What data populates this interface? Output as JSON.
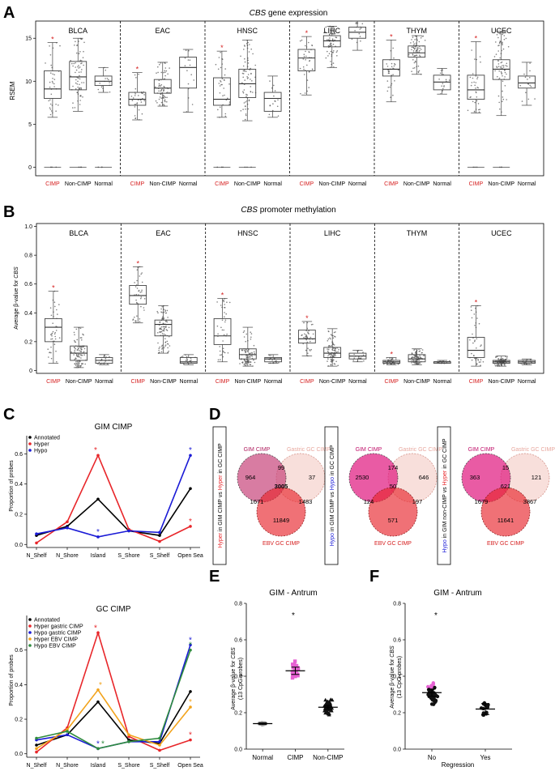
{
  "panelA": {
    "label": "A",
    "title_gene": "CBS",
    "title_rest": " gene expression",
    "ylabel": "RSEM",
    "ylim": [
      -1,
      17
    ],
    "yticks": [
      0,
      5,
      10,
      15
    ],
    "groups": [
      "CIMP",
      "Non-CIMP",
      "Normal"
    ],
    "cancers": [
      "BLCA",
      "EAC",
      "HNSC",
      "LIHC",
      "THYM",
      "UCEC"
    ],
    "colors": {
      "cimp": "#d62020",
      "box": "#444444",
      "star": "#d62020"
    }
  },
  "panelB": {
    "label": "B",
    "title_gene": "CBS",
    "title_rest": " promoter methylation",
    "ylabel_prefix": "Average β-value for ",
    "ylabel_gene": "CBS",
    "ylim": [
      -0.02,
      1.02
    ],
    "yticks": [
      "0",
      "0.2",
      "0.4",
      "0.6",
      "0.8",
      "1.0"
    ],
    "groups": [
      "CIMP",
      "Non-CIMP",
      "Normal"
    ],
    "cancers": [
      "BLCA",
      "EAC",
      "HNSC",
      "LIHC",
      "THYM",
      "UCEC"
    ]
  },
  "chart_data": [
    {
      "type": "box",
      "title": "CBS gene expression",
      "ylabel": "RSEM",
      "ylim": [
        -1,
        17
      ],
      "series": [
        {
          "cancer": "BLCA",
          "group": "CIMP",
          "q1": 8.0,
          "median": 9.1,
          "q3": 11.2,
          "wlow": 5.8,
          "whigh": 14.5
        },
        {
          "cancer": "BLCA",
          "group": "Non-CIMP",
          "q1": 9.0,
          "median": 10.5,
          "q3": 12.3,
          "wlow": 6.5,
          "whigh": 15.0
        },
        {
          "cancer": "BLCA",
          "group": "Normal",
          "q1": 9.5,
          "median": 10.0,
          "q3": 10.6,
          "wlow": 8.7,
          "whigh": 11.6
        },
        {
          "cancer": "EAC",
          "group": "CIMP",
          "q1": 7.2,
          "median": 7.9,
          "q3": 8.7,
          "wlow": 5.5,
          "whigh": 11.0
        },
        {
          "cancer": "EAC",
          "group": "Non-CIMP",
          "q1": 8.6,
          "median": 9.2,
          "q3": 10.2,
          "wlow": 7.1,
          "whigh": 12.2
        },
        {
          "cancer": "EAC",
          "group": "Normal",
          "q1": 9.2,
          "median": 11.6,
          "q3": 12.8,
          "wlow": 6.4,
          "whigh": 13.7
        },
        {
          "cancer": "HNSC",
          "group": "CIMP",
          "q1": 7.2,
          "median": 7.9,
          "q3": 10.4,
          "wlow": 5.8,
          "whigh": 13.5
        },
        {
          "cancer": "HNSC",
          "group": "Non-CIMP",
          "q1": 8.1,
          "median": 9.7,
          "q3": 11.4,
          "wlow": 5.4,
          "whigh": 14.8
        },
        {
          "cancer": "HNSC",
          "group": "Normal",
          "q1": 6.5,
          "median": 8.0,
          "q3": 8.7,
          "wlow": 5.8,
          "whigh": 10.6
        },
        {
          "cancer": "LIHC",
          "group": "CIMP",
          "q1": 11.2,
          "median": 12.7,
          "q3": 13.7,
          "wlow": 8.4,
          "whigh": 15.2
        },
        {
          "cancer": "LIHC",
          "group": "Non-CIMP",
          "q1": 14.0,
          "median": 14.7,
          "q3": 15.3,
          "wlow": 11.6,
          "whigh": 16.4
        },
        {
          "cancer": "LIHC",
          "group": "Normal",
          "q1": 15.0,
          "median": 15.7,
          "q3": 16.3,
          "wlow": 13.6,
          "whigh": 17.0
        },
        {
          "cancer": "THYM",
          "group": "CIMP",
          "q1": 10.6,
          "median": 11.4,
          "q3": 12.5,
          "wlow": 7.6,
          "whigh": 14.8
        },
        {
          "cancer": "THYM",
          "group": "Non-CIMP",
          "q1": 12.8,
          "median": 13.3,
          "q3": 14.1,
          "wlow": 10.8,
          "whigh": 15.3
        },
        {
          "cancer": "THYM",
          "group": "Normal",
          "q1": 9.0,
          "median": 9.9,
          "q3": 10.7,
          "wlow": 8.5,
          "whigh": 11.5
        },
        {
          "cancer": "UCEC",
          "group": "CIMP",
          "q1": 7.9,
          "median": 9.0,
          "q3": 10.7,
          "wlow": 6.3,
          "whigh": 14.6
        },
        {
          "cancer": "UCEC",
          "group": "Non-CIMP",
          "q1": 10.2,
          "median": 11.4,
          "q3": 12.5,
          "wlow": 6.0,
          "whigh": 15.8
        },
        {
          "cancer": "UCEC",
          "group": "Normal",
          "q1": 9.2,
          "median": 9.8,
          "q3": 10.6,
          "wlow": 7.2,
          "whigh": 12.2
        }
      ]
    },
    {
      "type": "box",
      "title": "CBS promoter methylation",
      "ylabel": "Average β-value for CBS",
      "ylim": [
        -0.02,
        1.02
      ],
      "series": [
        {
          "cancer": "BLCA",
          "group": "CIMP",
          "q1": 0.2,
          "median": 0.3,
          "q3": 0.36,
          "wlow": 0.05,
          "whigh": 0.55
        },
        {
          "cancer": "BLCA",
          "group": "Non-CIMP",
          "q1": 0.07,
          "median": 0.12,
          "q3": 0.17,
          "wlow": 0.02,
          "whigh": 0.3
        },
        {
          "cancer": "BLCA",
          "group": "Normal",
          "q1": 0.05,
          "median": 0.07,
          "q3": 0.09,
          "wlow": 0.04,
          "whigh": 0.11
        },
        {
          "cancer": "EAC",
          "group": "CIMP",
          "q1": 0.46,
          "median": 0.52,
          "q3": 0.59,
          "wlow": 0.33,
          "whigh": 0.72
        },
        {
          "cancer": "EAC",
          "group": "Non-CIMP",
          "q1": 0.24,
          "median": 0.32,
          "q3": 0.35,
          "wlow": 0.12,
          "whigh": 0.45
        },
        {
          "cancer": "EAC",
          "group": "Normal",
          "q1": 0.05,
          "median": 0.06,
          "q3": 0.09,
          "wlow": 0.04,
          "whigh": 0.11
        },
        {
          "cancer": "HNSC",
          "group": "CIMP",
          "q1": 0.18,
          "median": 0.24,
          "q3": 0.36,
          "wlow": 0.06,
          "whigh": 0.5
        },
        {
          "cancer": "HNSC",
          "group": "Non-CIMP",
          "q1": 0.08,
          "median": 0.11,
          "q3": 0.15,
          "wlow": 0.03,
          "whigh": 0.3
        },
        {
          "cancer": "HNSC",
          "group": "Normal",
          "q1": 0.06,
          "median": 0.08,
          "q3": 0.09,
          "wlow": 0.05,
          "whigh": 0.11
        },
        {
          "cancer": "LIHC",
          "group": "CIMP",
          "q1": 0.19,
          "median": 0.22,
          "q3": 0.28,
          "wlow": 0.1,
          "whigh": 0.34
        },
        {
          "cancer": "LIHC",
          "group": "Non-CIMP",
          "q1": 0.09,
          "median": 0.12,
          "q3": 0.16,
          "wlow": 0.03,
          "whigh": 0.29
        },
        {
          "cancer": "LIHC",
          "group": "Normal",
          "q1": 0.08,
          "median": 0.1,
          "q3": 0.12,
          "wlow": 0.06,
          "whigh": 0.14
        },
        {
          "cancer": "THYM",
          "group": "CIMP",
          "q1": 0.05,
          "median": 0.06,
          "q3": 0.07,
          "wlow": 0.04,
          "whigh": 0.09
        },
        {
          "cancer": "THYM",
          "group": "Non-CIMP",
          "q1": 0.06,
          "median": 0.08,
          "q3": 0.11,
          "wlow": 0.04,
          "whigh": 0.15
        },
        {
          "cancer": "THYM",
          "group": "Normal",
          "q1": 0.05,
          "median": 0.06,
          "q3": 0.06,
          "wlow": 0.05,
          "whigh": 0.07
        },
        {
          "cancer": "UCEC",
          "group": "CIMP",
          "q1": 0.09,
          "median": 0.14,
          "q3": 0.23,
          "wlow": 0.03,
          "whigh": 0.45
        },
        {
          "cancer": "UCEC",
          "group": "Non-CIMP",
          "q1": 0.05,
          "median": 0.06,
          "q3": 0.07,
          "wlow": 0.03,
          "whigh": 0.1
        },
        {
          "cancer": "UCEC",
          "group": "Normal",
          "q1": 0.05,
          "median": 0.06,
          "q3": 0.07,
          "wlow": 0.04,
          "whigh": 0.08
        }
      ]
    },
    {
      "type": "line",
      "title": "GIM CIMP",
      "ylabel": "Proportion of probes",
      "ylim": [
        -0.02,
        0.72
      ],
      "yticks": [
        "0.0",
        "0.2",
        "0.4",
        "0.6"
      ],
      "categories": [
        "N_Shelf",
        "N_Shore",
        "Island",
        "S_Shore",
        "S_Shelf",
        "Open Sea"
      ],
      "series": [
        {
          "name": "Annotated",
          "color": "#000000",
          "values": [
            0.06,
            0.12,
            0.3,
            0.09,
            0.06,
            0.37
          ]
        },
        {
          "name": "Hyper",
          "color": "#e8262a",
          "values": [
            0.01,
            0.15,
            0.59,
            0.1,
            0.02,
            0.12
          ]
        },
        {
          "name": "Hypo",
          "color": "#1a1ad6",
          "values": [
            0.07,
            0.11,
            0.05,
            0.09,
            0.08,
            0.59
          ]
        }
      ]
    },
    {
      "type": "line",
      "title": "GC CIMP",
      "ylabel": "Proportion of probes",
      "ylim": [
        -0.02,
        0.8
      ],
      "yticks": [
        "0.0",
        "0.2",
        "0.4",
        "0.6"
      ],
      "categories": [
        "N_Shelf",
        "N_Shore",
        "Island",
        "S_Shore",
        "S_Shelf",
        "Open Sea"
      ],
      "series": [
        {
          "name": "Annotated",
          "color": "#000000",
          "values": [
            0.05,
            0.11,
            0.3,
            0.08,
            0.06,
            0.36
          ]
        },
        {
          "name": "Hyper gastric CIMP",
          "color": "#e8262a",
          "values": [
            0.01,
            0.15,
            0.7,
            0.1,
            0.02,
            0.08
          ]
        },
        {
          "name": "Hypo gastric CIMP",
          "color": "#1a1ad6",
          "values": [
            0.08,
            0.11,
            0.03,
            0.07,
            0.07,
            0.63
          ]
        },
        {
          "name": "Hyper EBV CIMP",
          "color": "#f2a31c",
          "values": [
            0.03,
            0.14,
            0.37,
            0.11,
            0.05,
            0.27
          ]
        },
        {
          "name": "Hypo EBV CIMP",
          "color": "#2e8b3e",
          "values": [
            0.09,
            0.13,
            0.03,
            0.07,
            0.09,
            0.6
          ]
        }
      ]
    },
    {
      "type": "scatter",
      "title": "GIM - Antrum",
      "ylabel": "Average β-value for CBS (13 CpG probes)",
      "ylim": [
        0,
        0.8
      ],
      "yticks": [
        "0.0",
        "0.2",
        "0.4",
        "0.6",
        "0.8"
      ],
      "categories": [
        "Normal",
        "CIMP",
        "Non-CIMP"
      ],
      "mean": [
        0.14,
        0.43,
        0.23
      ],
      "sem": [
        0.005,
        0.02,
        0.01
      ]
    },
    {
      "type": "scatter",
      "title": "GIM - Antrum",
      "ylabel": "Average β-value for CBS (13 CpG probes)",
      "xlabel": "Regression",
      "ylim": [
        0,
        0.8
      ],
      "yticks": [
        "0.0",
        "0.2",
        "0.4",
        "0.6",
        "0.8"
      ],
      "categories": [
        "No",
        "Yes"
      ],
      "mean": [
        0.31,
        0.22
      ],
      "sem": [
        0.02,
        0.03
      ]
    }
  ],
  "panelC": {
    "label": "C",
    "top_title": "GIM CIMP",
    "bottom_title": "GC CIMP",
    "ylabel": "Proportion of probes",
    "top_legend": [
      "Annotated",
      "Hyper",
      "Hypo"
    ],
    "bottom_legend": [
      "Annotated",
      "Hyper gastric CIMP",
      "Hypo gastric CIMP",
      "Hyper EBV CIMP",
      "Hypo EBV CIMP"
    ]
  },
  "panelD": {
    "label": "D",
    "venns": [
      {
        "side_label": [
          "Hyper",
          " in GIM CIMP vs ",
          "Hyper",
          " in GC CIMP"
        ],
        "side_colors": [
          "#e8262a",
          "#000000",
          "#e8262a",
          "#000000"
        ],
        "set_names": [
          "GIM CIMP",
          "Gastric GC CIMP",
          "EBV GC CIMP"
        ],
        "numbers": {
          "a": "964",
          "ab": "99",
          "b": "37",
          "abc": "3005",
          "ac": "1671",
          "bc": "1483",
          "c": "11849"
        },
        "set_colors": [
          "#c8457a",
          "#f3c5bd",
          "#e8252d"
        ]
      },
      {
        "side_label": [
          "Hypo",
          " in GIM CIMP vs ",
          "Hypo",
          " in GC CIMP"
        ],
        "side_colors": [
          "#1a1ad6",
          "#000000",
          "#1a1ad6",
          "#000000"
        ],
        "set_names": [
          "GIM CIMP",
          "Gastric GC CIMP",
          "EBV GC CIMP"
        ],
        "numbers": {
          "a": "2530",
          "ab": "174",
          "b": "646",
          "abc": "50",
          "ac": "124",
          "bc": "197",
          "c": "571"
        },
        "set_colors": [
          "#e0157e",
          "#f3c5bd",
          "#e8252d"
        ]
      },
      {
        "side_label": [
          "Hypo",
          " in GIM non-CIMP vs ",
          "Hyper",
          " in GC CIMP"
        ],
        "side_colors": [
          "#1a1ad6",
          "#000000",
          "#e8262a",
          "#000000"
        ],
        "set_names": [
          "GIM CIMP",
          "Gastric GC CIMP",
          "EBV GC CIMP"
        ],
        "numbers": {
          "a": "363",
          "ab": "15",
          "b": "121",
          "abc": "621",
          "ac": "1679",
          "bc": "3867",
          "c": "11641"
        },
        "set_colors": [
          "#e0157e",
          "#f3c5bd",
          "#e8252d"
        ]
      }
    ]
  },
  "panelE": {
    "label": "E",
    "title": "GIM - Antrum",
    "ylabel1_prefix": "Average β-value for ",
    "ylabel1_gene": "CBS",
    "ylabel2": "(13 CpG probes)",
    "categories": [
      "Normal",
      "CIMP",
      "Non-CIMP"
    ],
    "star": "*"
  },
  "panelF": {
    "label": "F",
    "title": "GIM - Antrum",
    "ylabel1_prefix": "Average β-value for ",
    "ylabel1_gene": "CBS",
    "ylabel2": "(13 CpG probes)",
    "categories": [
      "No",
      "Yes"
    ],
    "xlabel": "Regression",
    "star": "*"
  }
}
